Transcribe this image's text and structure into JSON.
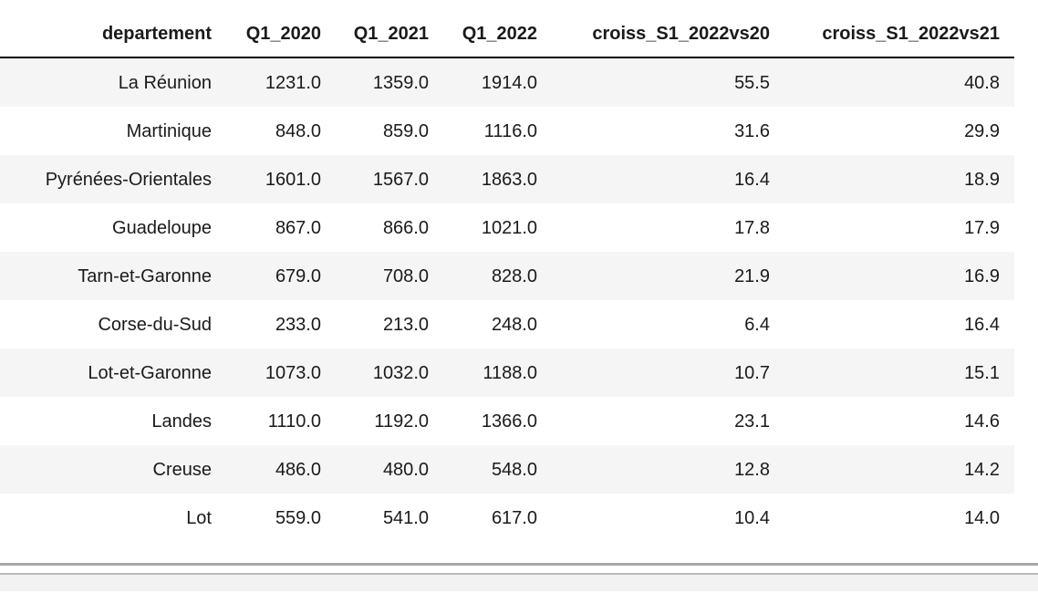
{
  "table": {
    "index_name": "departement",
    "columns": [
      "departement",
      "Q1_2020",
      "Q1_2021",
      "Q1_2022",
      "croiss_S1_2022vs20",
      "croiss_S1_2022vs21"
    ],
    "rows": [
      {
        "departement": "La Réunion",
        "values": [
          "1231.0",
          "1359.0",
          "1914.0",
          "55.5",
          "40.8"
        ]
      },
      {
        "departement": "Martinique",
        "values": [
          "848.0",
          "859.0",
          "1116.0",
          "31.6",
          "29.9"
        ]
      },
      {
        "departement": "Pyrénées-Orientales",
        "values": [
          "1601.0",
          "1567.0",
          "1863.0",
          "16.4",
          "18.9"
        ]
      },
      {
        "departement": "Guadeloupe",
        "values": [
          "867.0",
          "866.0",
          "1021.0",
          "17.8",
          "17.9"
        ]
      },
      {
        "departement": "Tarn-et-Garonne",
        "values": [
          "679.0",
          "708.0",
          "828.0",
          "21.9",
          "16.9"
        ]
      },
      {
        "departement": "Corse-du-Sud",
        "values": [
          "233.0",
          "213.0",
          "248.0",
          "6.4",
          "16.4"
        ]
      },
      {
        "departement": "Lot-et-Garonne",
        "values": [
          "1073.0",
          "1032.0",
          "1188.0",
          "10.7",
          "15.1"
        ]
      },
      {
        "departement": "Landes",
        "values": [
          "1110.0",
          "1192.0",
          "1366.0",
          "23.1",
          "14.6"
        ]
      },
      {
        "departement": "Creuse",
        "values": [
          "486.0",
          "480.0",
          "548.0",
          "12.8",
          "14.2"
        ]
      },
      {
        "departement": "Lot",
        "values": [
          "559.0",
          "541.0",
          "617.0",
          "10.4",
          "14.0"
        ]
      }
    ]
  },
  "colors": {
    "row_stripe": "#f5f5f5",
    "text": "#1a1a1a",
    "header_rule": "#000000",
    "output_divider": "#a6a6a6",
    "next_cell_background": "#f2f2f2",
    "next_cell_border": "#b9b9b9"
  }
}
